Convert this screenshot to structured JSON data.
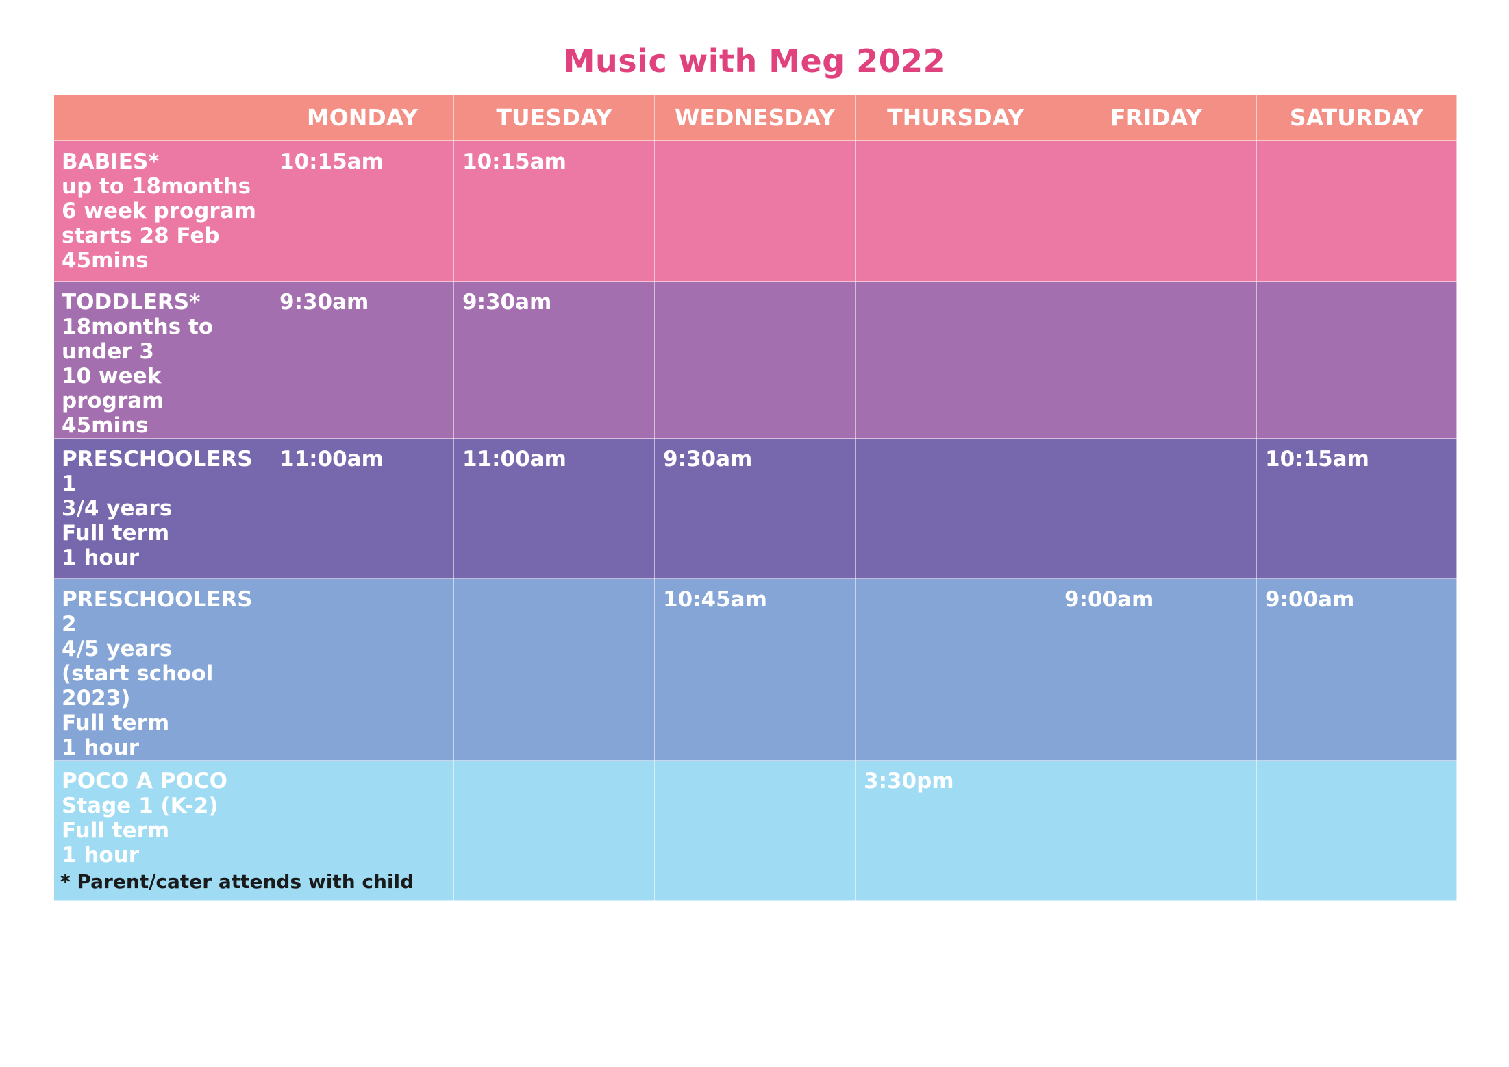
{
  "title": "Music with Meg 2022",
  "colors": {
    "title": "#e0427e",
    "header": "#f38f85",
    "babies": "#ec79a4",
    "toddlers": "#a46fae",
    "preschoolers1": "#7767ac",
    "preschoolers2": "#84a5d6",
    "poco": "#9fdcf4"
  },
  "header": {
    "corner": "",
    "days": [
      "MONDAY",
      "TUESDAY",
      "WEDNESDAY",
      "THURSDAY",
      "FRIDAY",
      "SATURDAY"
    ]
  },
  "rows": [
    {
      "group": "BABIES*\nup to 18months\n6 week program\nstarts 28 Feb\n45mins",
      "times": [
        "10:15am",
        "10:15am",
        "",
        "",
        "",
        ""
      ]
    },
    {
      "group": "TODDLERS*\n18months to under 3\n10 week program\n45mins",
      "times": [
        "9:30am",
        "9:30am",
        "",
        "",
        "",
        ""
      ]
    },
    {
      "group": "PRESCHOOLERS 1\n3/4 years\nFull term\n1 hour",
      "times": [
        "11:00am",
        "11:00am",
        "9:30am",
        "",
        "",
        "10:15am"
      ]
    },
    {
      "group": "PRESCHOOLERS 2\n4/5 years\n(start school 2023)\nFull term\n1 hour",
      "times": [
        "",
        "",
        "10:45am",
        "",
        "9:00am",
        "9:00am"
      ]
    },
    {
      "group": "POCO A POCO\nStage 1 (K-2)\nFull term\n1 hour",
      "times": [
        "",
        "",
        "",
        "3:30pm",
        "",
        ""
      ]
    }
  ],
  "footnote": "* Parent/cater attends with child"
}
